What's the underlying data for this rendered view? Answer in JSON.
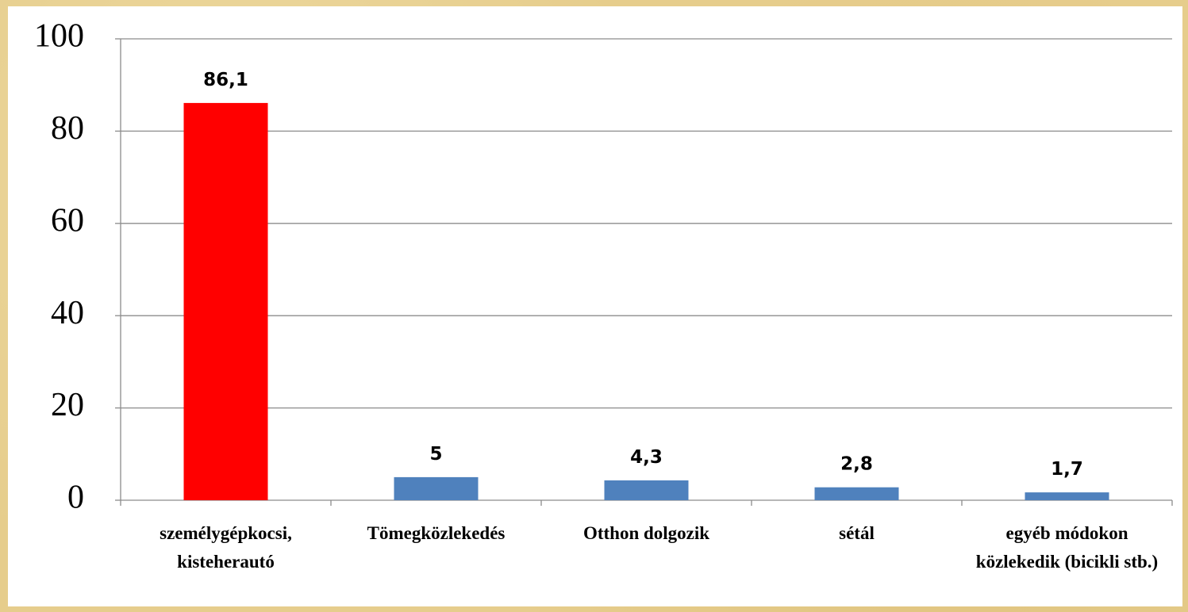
{
  "chart_data": {
    "type": "bar",
    "categories": [
      "személygépkocsi, kisteherautó",
      "Tömegközlekedés",
      "Otthon dolgozik",
      "sétál",
      "egyéb módokon közlekedik (bicikli stb.)"
    ],
    "values": [
      86.1,
      5,
      4.3,
      2.8,
      1.7
    ],
    "value_labels": [
      "86,1",
      "5",
      "4,3",
      "2,8",
      "1,7"
    ],
    "colors": [
      "#ff0000",
      "#4f81bd",
      "#4f81bd",
      "#4f81bd",
      "#4f81bd"
    ],
    "ylim": [
      0,
      100
    ],
    "yticks": [
      0,
      20,
      40,
      60,
      80,
      100
    ],
    "grid": true
  }
}
